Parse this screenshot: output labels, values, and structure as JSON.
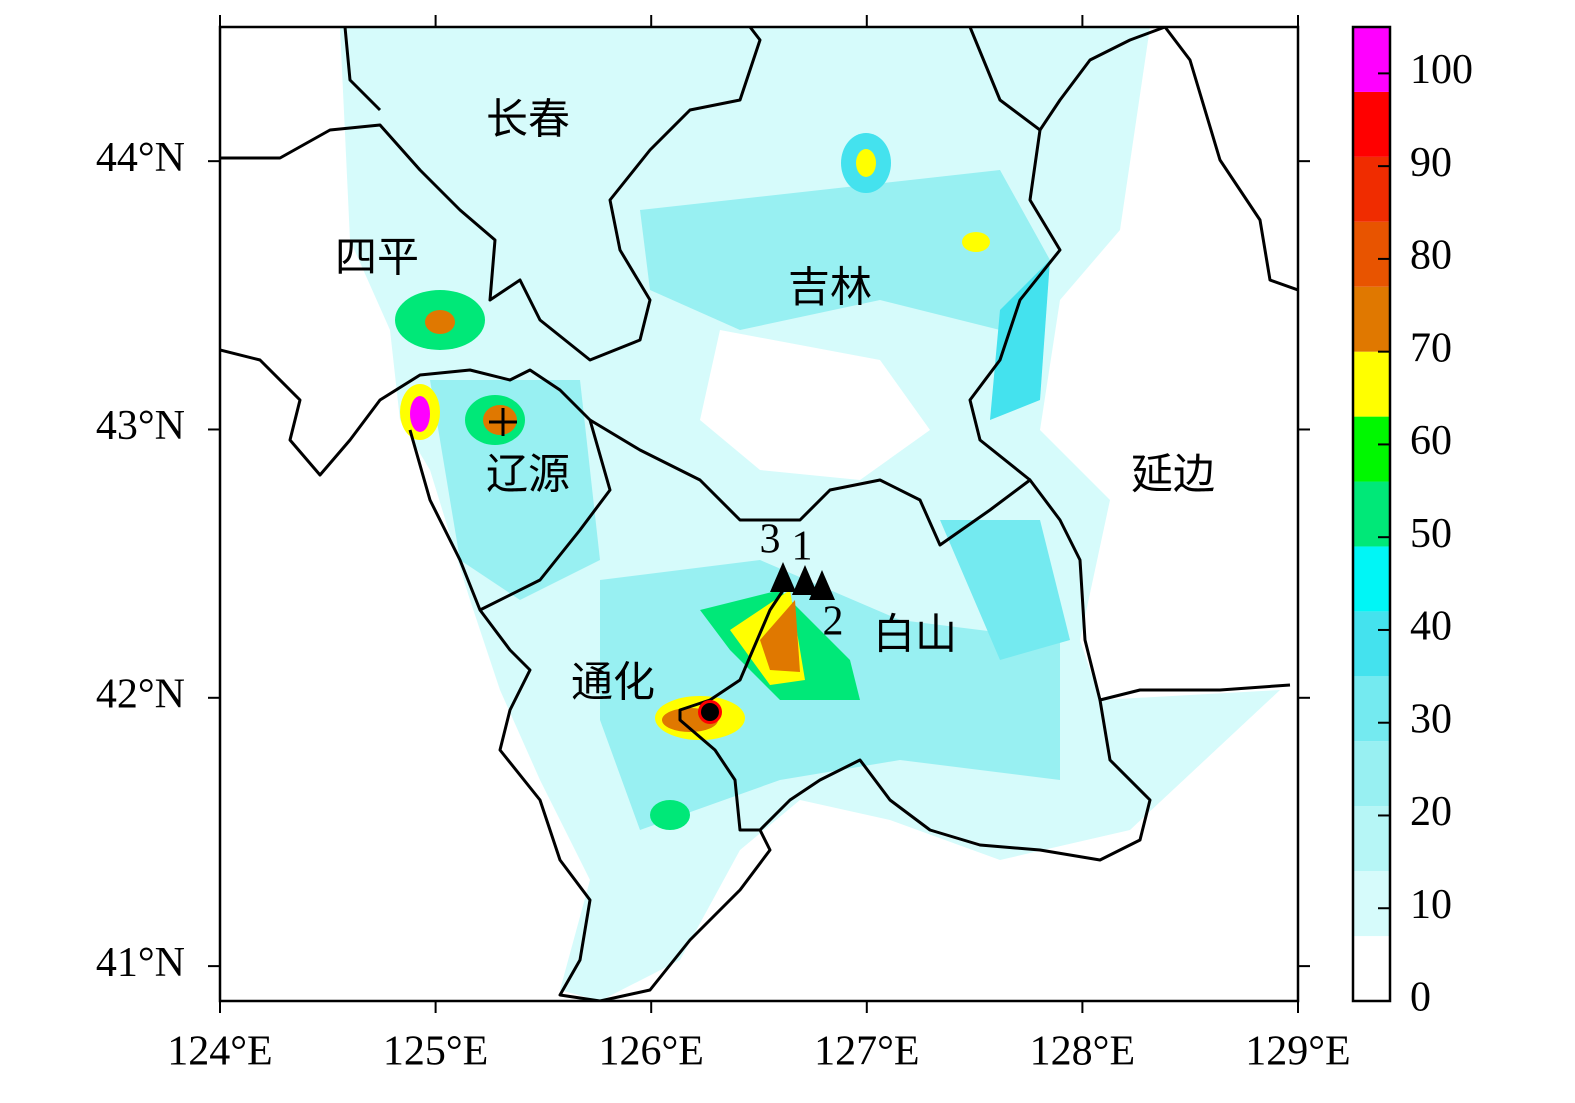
{
  "map": {
    "x_axis": {
      "lim": [
        124,
        129
      ],
      "ticks": [
        {
          "value": 124,
          "label": "124°E"
        },
        {
          "value": 125,
          "label": "125°E"
        },
        {
          "value": 126,
          "label": "126°E"
        },
        {
          "value": 127,
          "label": "127°E"
        },
        {
          "value": 128,
          "label": "128°E"
        },
        {
          "value": 129,
          "label": "129°E"
        }
      ]
    },
    "y_axis": {
      "lim": [
        40.87,
        44.5
      ],
      "ticks": [
        {
          "value": 41,
          "label": "41°N"
        },
        {
          "value": 42,
          "label": "42°N"
        },
        {
          "value": 43,
          "label": "43°N"
        },
        {
          "value": 44,
          "label": "44°N"
        }
      ]
    },
    "colorbar": {
      "lim": [
        0,
        105
      ],
      "ticks": [
        0,
        10,
        20,
        30,
        40,
        50,
        60,
        70,
        80,
        90,
        100
      ],
      "levels": [
        0,
        7,
        14,
        21,
        28,
        35,
        42,
        49,
        56,
        63,
        70,
        77,
        84,
        91,
        98,
        105
      ],
      "colors": [
        "#ffffff",
        "#d6fbfb",
        "#b6f6f6",
        "#98f0f2",
        "#74eaf0",
        "#44e2ee",
        "#00f6f6",
        "#00e878",
        "#00f800",
        "#ffff00",
        "#e07800",
        "#e85400",
        "#f02c00",
        "#ff0000",
        "#ff00ff"
      ]
    },
    "places": [
      "长春",
      "四平",
      "吉林",
      "辽源",
      "延边",
      "通化",
      "白山"
    ],
    "stations": [
      "3",
      "1",
      "2"
    ]
  }
}
